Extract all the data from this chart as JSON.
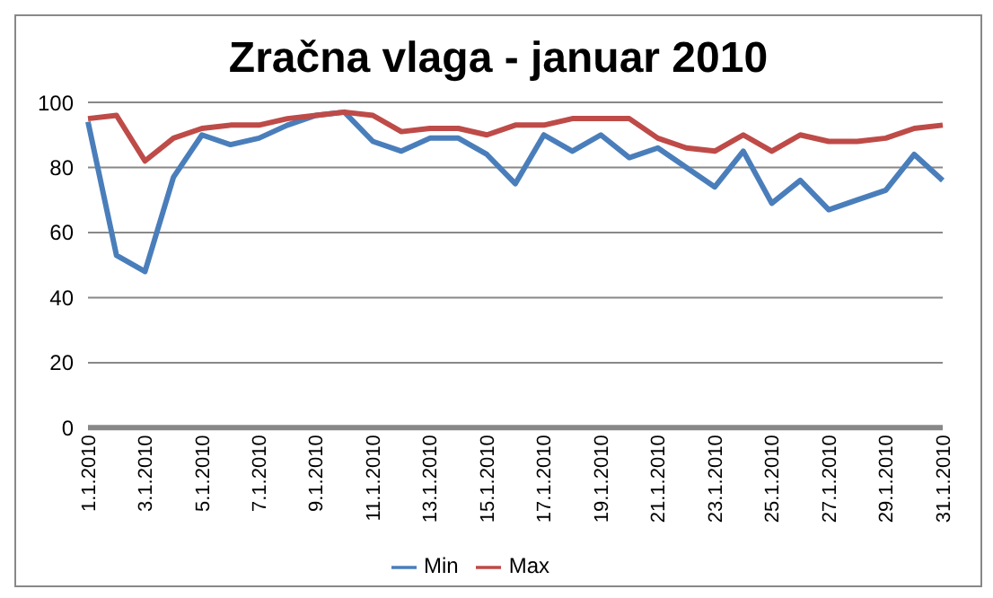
{
  "chart_data": {
    "type": "line",
    "title": "Zračna vlaga - januar 2010",
    "categories": [
      "1.1.2010",
      null,
      "3.1.2010",
      null,
      "5.1.2010",
      null,
      "7.1.2010",
      null,
      "9.1.2010",
      null,
      "11.1.2010",
      null,
      "13.1.2010",
      null,
      "15.1.2010",
      null,
      "17.1.2010",
      null,
      "19.1.2010",
      null,
      "21.1.2010",
      null,
      "23.1.2010",
      null,
      "25.1.2010",
      null,
      "27.1.2010",
      null,
      "29.1.2010",
      null,
      "31.1.2010"
    ],
    "series": [
      {
        "name": "Min",
        "color": "#4a7ebb",
        "values": [
          94,
          53,
          48,
          77,
          90,
          87,
          89,
          93,
          96,
          97,
          88,
          85,
          89,
          89,
          84,
          75,
          90,
          85,
          90,
          83,
          86,
          80,
          74,
          85,
          69,
          76,
          67,
          70,
          73,
          84,
          76
        ]
      },
      {
        "name": "Max",
        "color": "#be4b48",
        "values": [
          95,
          96,
          82,
          89,
          92,
          93,
          93,
          95,
          96,
          97,
          96,
          91,
          92,
          92,
          90,
          93,
          93,
          95,
          95,
          95,
          89,
          86,
          85,
          90,
          85,
          90,
          88,
          88,
          89,
          92,
          93
        ]
      }
    ],
    "ylim": [
      0,
      100
    ],
    "yticks": [
      0,
      20,
      40,
      60,
      80,
      100
    ],
    "grid": "y",
    "legend": "bottom",
    "marker": "none",
    "line_style": "solid"
  }
}
